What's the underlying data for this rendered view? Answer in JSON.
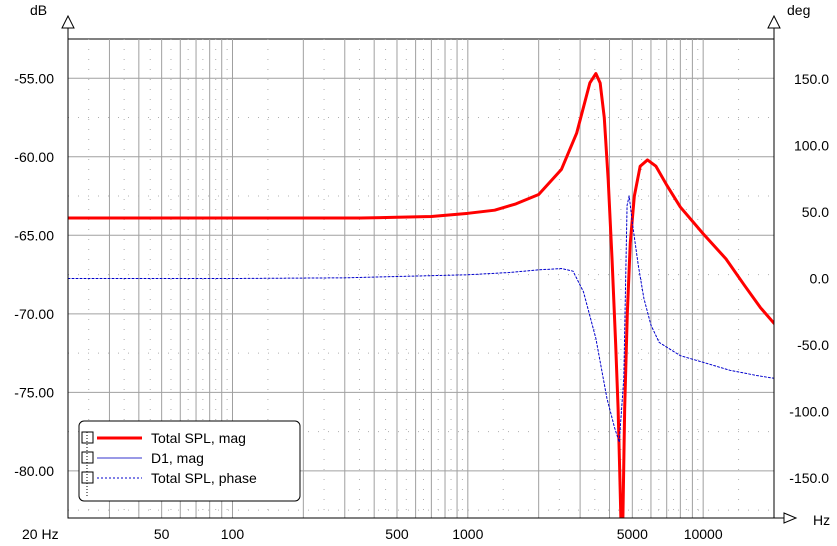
{
  "chart_data": {
    "type": "line",
    "title": "",
    "x_axis": {
      "unit": "Hz",
      "scale": "log",
      "range": [
        20,
        20000
      ],
      "ticks": [
        {
          "value": 20,
          "label": "20 Hz"
        },
        {
          "value": 50,
          "label": "50"
        },
        {
          "value": 100,
          "label": "100"
        },
        {
          "value": 500,
          "label": "500"
        },
        {
          "value": 1000,
          "label": "1000"
        },
        {
          "value": 5000,
          "label": "5000"
        },
        {
          "value": 10000,
          "label": "10000"
        }
      ]
    },
    "y_axis_left": {
      "unit": "dB",
      "range": [
        -83.0,
        -52.5
      ],
      "ticks": [
        {
          "value": -55,
          "label": "-55.00"
        },
        {
          "value": -60,
          "label": "-60.00"
        },
        {
          "value": -65,
          "label": "-65.00"
        },
        {
          "value": -70,
          "label": "-70.00"
        },
        {
          "value": -75,
          "label": "-75.00"
        },
        {
          "value": -80,
          "label": "-80.00"
        }
      ]
    },
    "y_axis_right": {
      "unit": "deg",
      "range": [
        -180,
        180
      ],
      "ticks": [
        {
          "value": 150,
          "label": "150.0"
        },
        {
          "value": 100,
          "label": "100.0"
        },
        {
          "value": 50,
          "label": "50.0"
        },
        {
          "value": 0,
          "label": "0.0"
        },
        {
          "value": -50,
          "label": "-50.0"
        },
        {
          "value": -100,
          "label": "-100.0"
        },
        {
          "value": -150,
          "label": "-150.0"
        }
      ]
    },
    "grid": true,
    "legend_position": "bottom-left",
    "series": [
      {
        "name": "Total SPL, mag",
        "axis": "left",
        "color": "#ff0000",
        "style": "solid",
        "points": [
          [
            20,
            -63.9
          ],
          [
            50,
            -63.9
          ],
          [
            100,
            -63.9
          ],
          [
            200,
            -63.9
          ],
          [
            350,
            -63.9
          ],
          [
            500,
            -63.85
          ],
          [
            700,
            -63.8
          ],
          [
            1000,
            -63.6
          ],
          [
            1300,
            -63.4
          ],
          [
            1600,
            -63.0
          ],
          [
            2000,
            -62.4
          ],
          [
            2500,
            -60.8
          ],
          [
            2900,
            -58.5
          ],
          [
            3300,
            -55.3
          ],
          [
            3500,
            -54.7
          ],
          [
            3650,
            -55.3
          ],
          [
            3800,
            -57.5
          ],
          [
            3950,
            -61.5
          ],
          [
            4100,
            -66.5
          ],
          [
            4250,
            -72.0
          ],
          [
            4350,
            -76.0
          ],
          [
            4420,
            -80.0
          ],
          [
            4470,
            -83.0
          ],
          [
            4560,
            -83.0
          ],
          [
            4640,
            -76.0
          ],
          [
            4760,
            -70.0
          ],
          [
            4900,
            -65.5
          ],
          [
            5100,
            -62.5
          ],
          [
            5400,
            -60.6
          ],
          [
            5800,
            -60.2
          ],
          [
            6300,
            -60.6
          ],
          [
            7000,
            -61.8
          ],
          [
            8000,
            -63.2
          ],
          [
            10000,
            -64.9
          ],
          [
            12500,
            -66.5
          ],
          [
            15000,
            -68.2
          ],
          [
            17500,
            -69.6
          ],
          [
            20000,
            -70.6
          ]
        ]
      },
      {
        "name": "D1, mag",
        "axis": "left",
        "color": "#3333cc",
        "style": "solid",
        "points": []
      },
      {
        "name": "Total SPL, phase",
        "axis": "right",
        "color": "#0000cc",
        "style": "dotted",
        "points": [
          [
            20,
            0
          ],
          [
            100,
            0
          ],
          [
            300,
            0.5
          ],
          [
            500,
            1.5
          ],
          [
            1000,
            2.8
          ],
          [
            1500,
            4.5
          ],
          [
            2000,
            6.5
          ],
          [
            2500,
            7.5
          ],
          [
            2800,
            5.5
          ],
          [
            3100,
            -10
          ],
          [
            3500,
            -45
          ],
          [
            3900,
            -90
          ],
          [
            4200,
            -112
          ],
          [
            4400,
            -123
          ],
          [
            4600,
            -75
          ],
          [
            4750,
            55
          ],
          [
            4850,
            62
          ],
          [
            5000,
            42
          ],
          [
            5300,
            10
          ],
          [
            5600,
            -15
          ],
          [
            6000,
            -35
          ],
          [
            6500,
            -48
          ],
          [
            8000,
            -58
          ],
          [
            10000,
            -63
          ],
          [
            13000,
            -69
          ],
          [
            17000,
            -73
          ],
          [
            20000,
            -75
          ]
        ]
      }
    ]
  }
}
